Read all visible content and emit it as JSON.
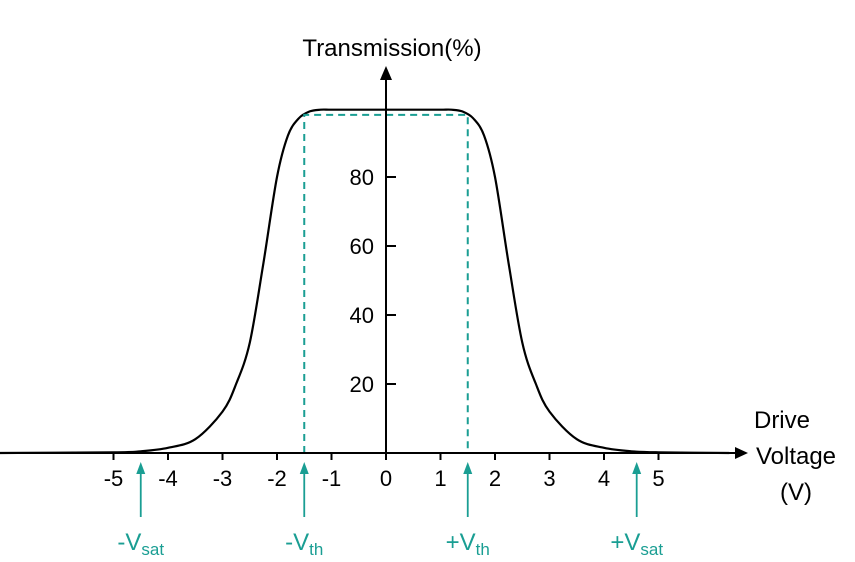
{
  "chart_data": {
    "type": "line",
    "ylabel": "Transmission(%)",
    "xlabel_lines": [
      "Drive",
      "Voltage",
      "(V)"
    ],
    "x_ticks": [
      -5,
      -4,
      -3,
      -2,
      -1,
      0,
      1,
      2,
      3,
      4,
      5
    ],
    "y_ticks": [
      20,
      40,
      60,
      80
    ],
    "xlim": [
      -7.2,
      7.0
    ],
    "ylim": [
      0,
      100
    ],
    "grid": false,
    "series": [
      {
        "x": [
          -7.2,
          -5.0,
          -4.5,
          -4.0,
          -3.5,
          -3.0,
          -2.75,
          -2.5,
          -2.25,
          -2.0,
          -1.8,
          -1.6,
          -1.4,
          -1.2,
          -1.0,
          -0.5,
          0.0,
          0.5,
          1.0,
          1.2,
          1.4,
          1.6,
          1.8,
          2.0,
          2.25,
          2.5,
          2.75,
          3.0,
          3.5,
          4.0,
          4.5,
          5.0,
          6.3
        ],
        "y": [
          0,
          0.2,
          0.5,
          1.5,
          4,
          12,
          20,
          32,
          55,
          80,
          92,
          97,
          99,
          99.5,
          99.5,
          99.5,
          99.5,
          99.5,
          99.5,
          99.5,
          99,
          97,
          92,
          80,
          55,
          32,
          20,
          12,
          4,
          1.5,
          0.5,
          0.2,
          0
        ]
      }
    ],
    "threshold_box": {
      "x_left": -1.5,
      "x_right": 1.5,
      "y_top": 98
    },
    "markers": [
      {
        "main": "-V",
        "sub": "sat",
        "x": -4.5
      },
      {
        "main": "-V",
        "sub": "th",
        "x": -1.5
      },
      {
        "main": "+V",
        "sub": "th",
        "x": 1.5
      },
      {
        "main": "+V",
        "sub": "sat",
        "x": 4.6
      }
    ]
  }
}
